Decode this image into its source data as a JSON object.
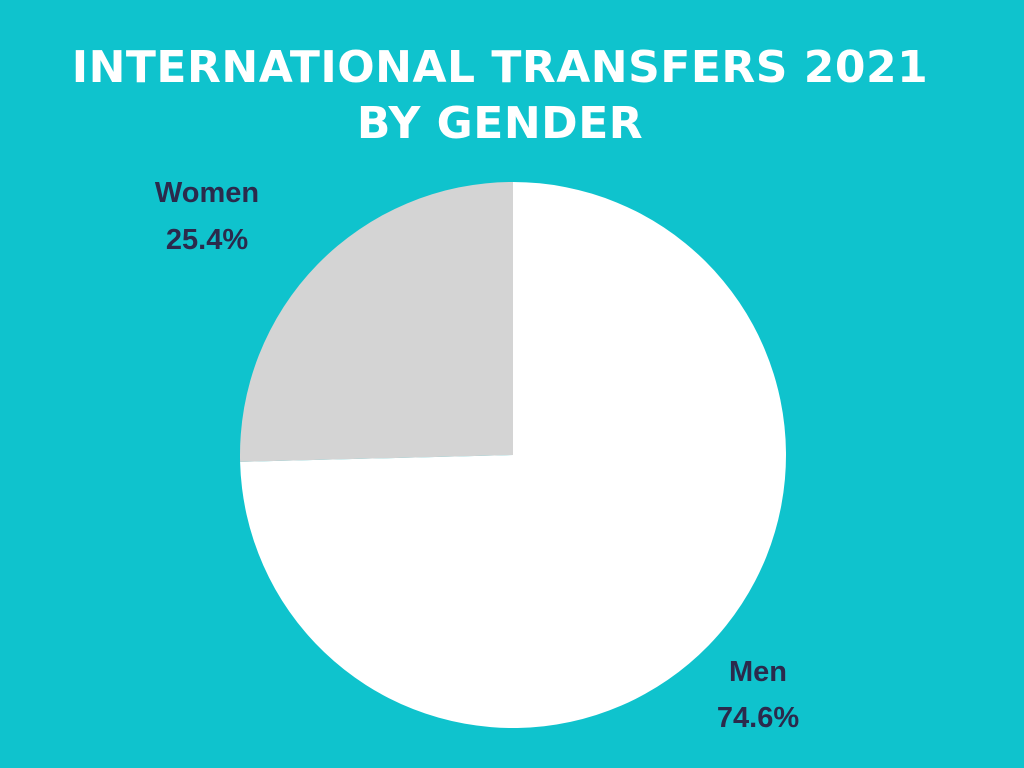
{
  "title_line_1": "INTERNATIONAL TRANSFERS 2021",
  "title_line_2": "BY GENDER",
  "colors": {
    "background": "#0fc3cd",
    "title_text": "#ffffff",
    "label_text": "#2b2a4c"
  },
  "chart_data": {
    "type": "pie",
    "title": "INTERNATIONAL TRANSFERS 2021 BY GENDER",
    "start_angle_deg": 0,
    "direction": "clockwise",
    "slices": [
      {
        "name": "Men",
        "value": 74.6,
        "value_label": "74.6%",
        "color": "#ffffff"
      },
      {
        "name": "Women",
        "value": 25.4,
        "value_label": "25.4%",
        "color": "#d4d4d4"
      }
    ]
  }
}
